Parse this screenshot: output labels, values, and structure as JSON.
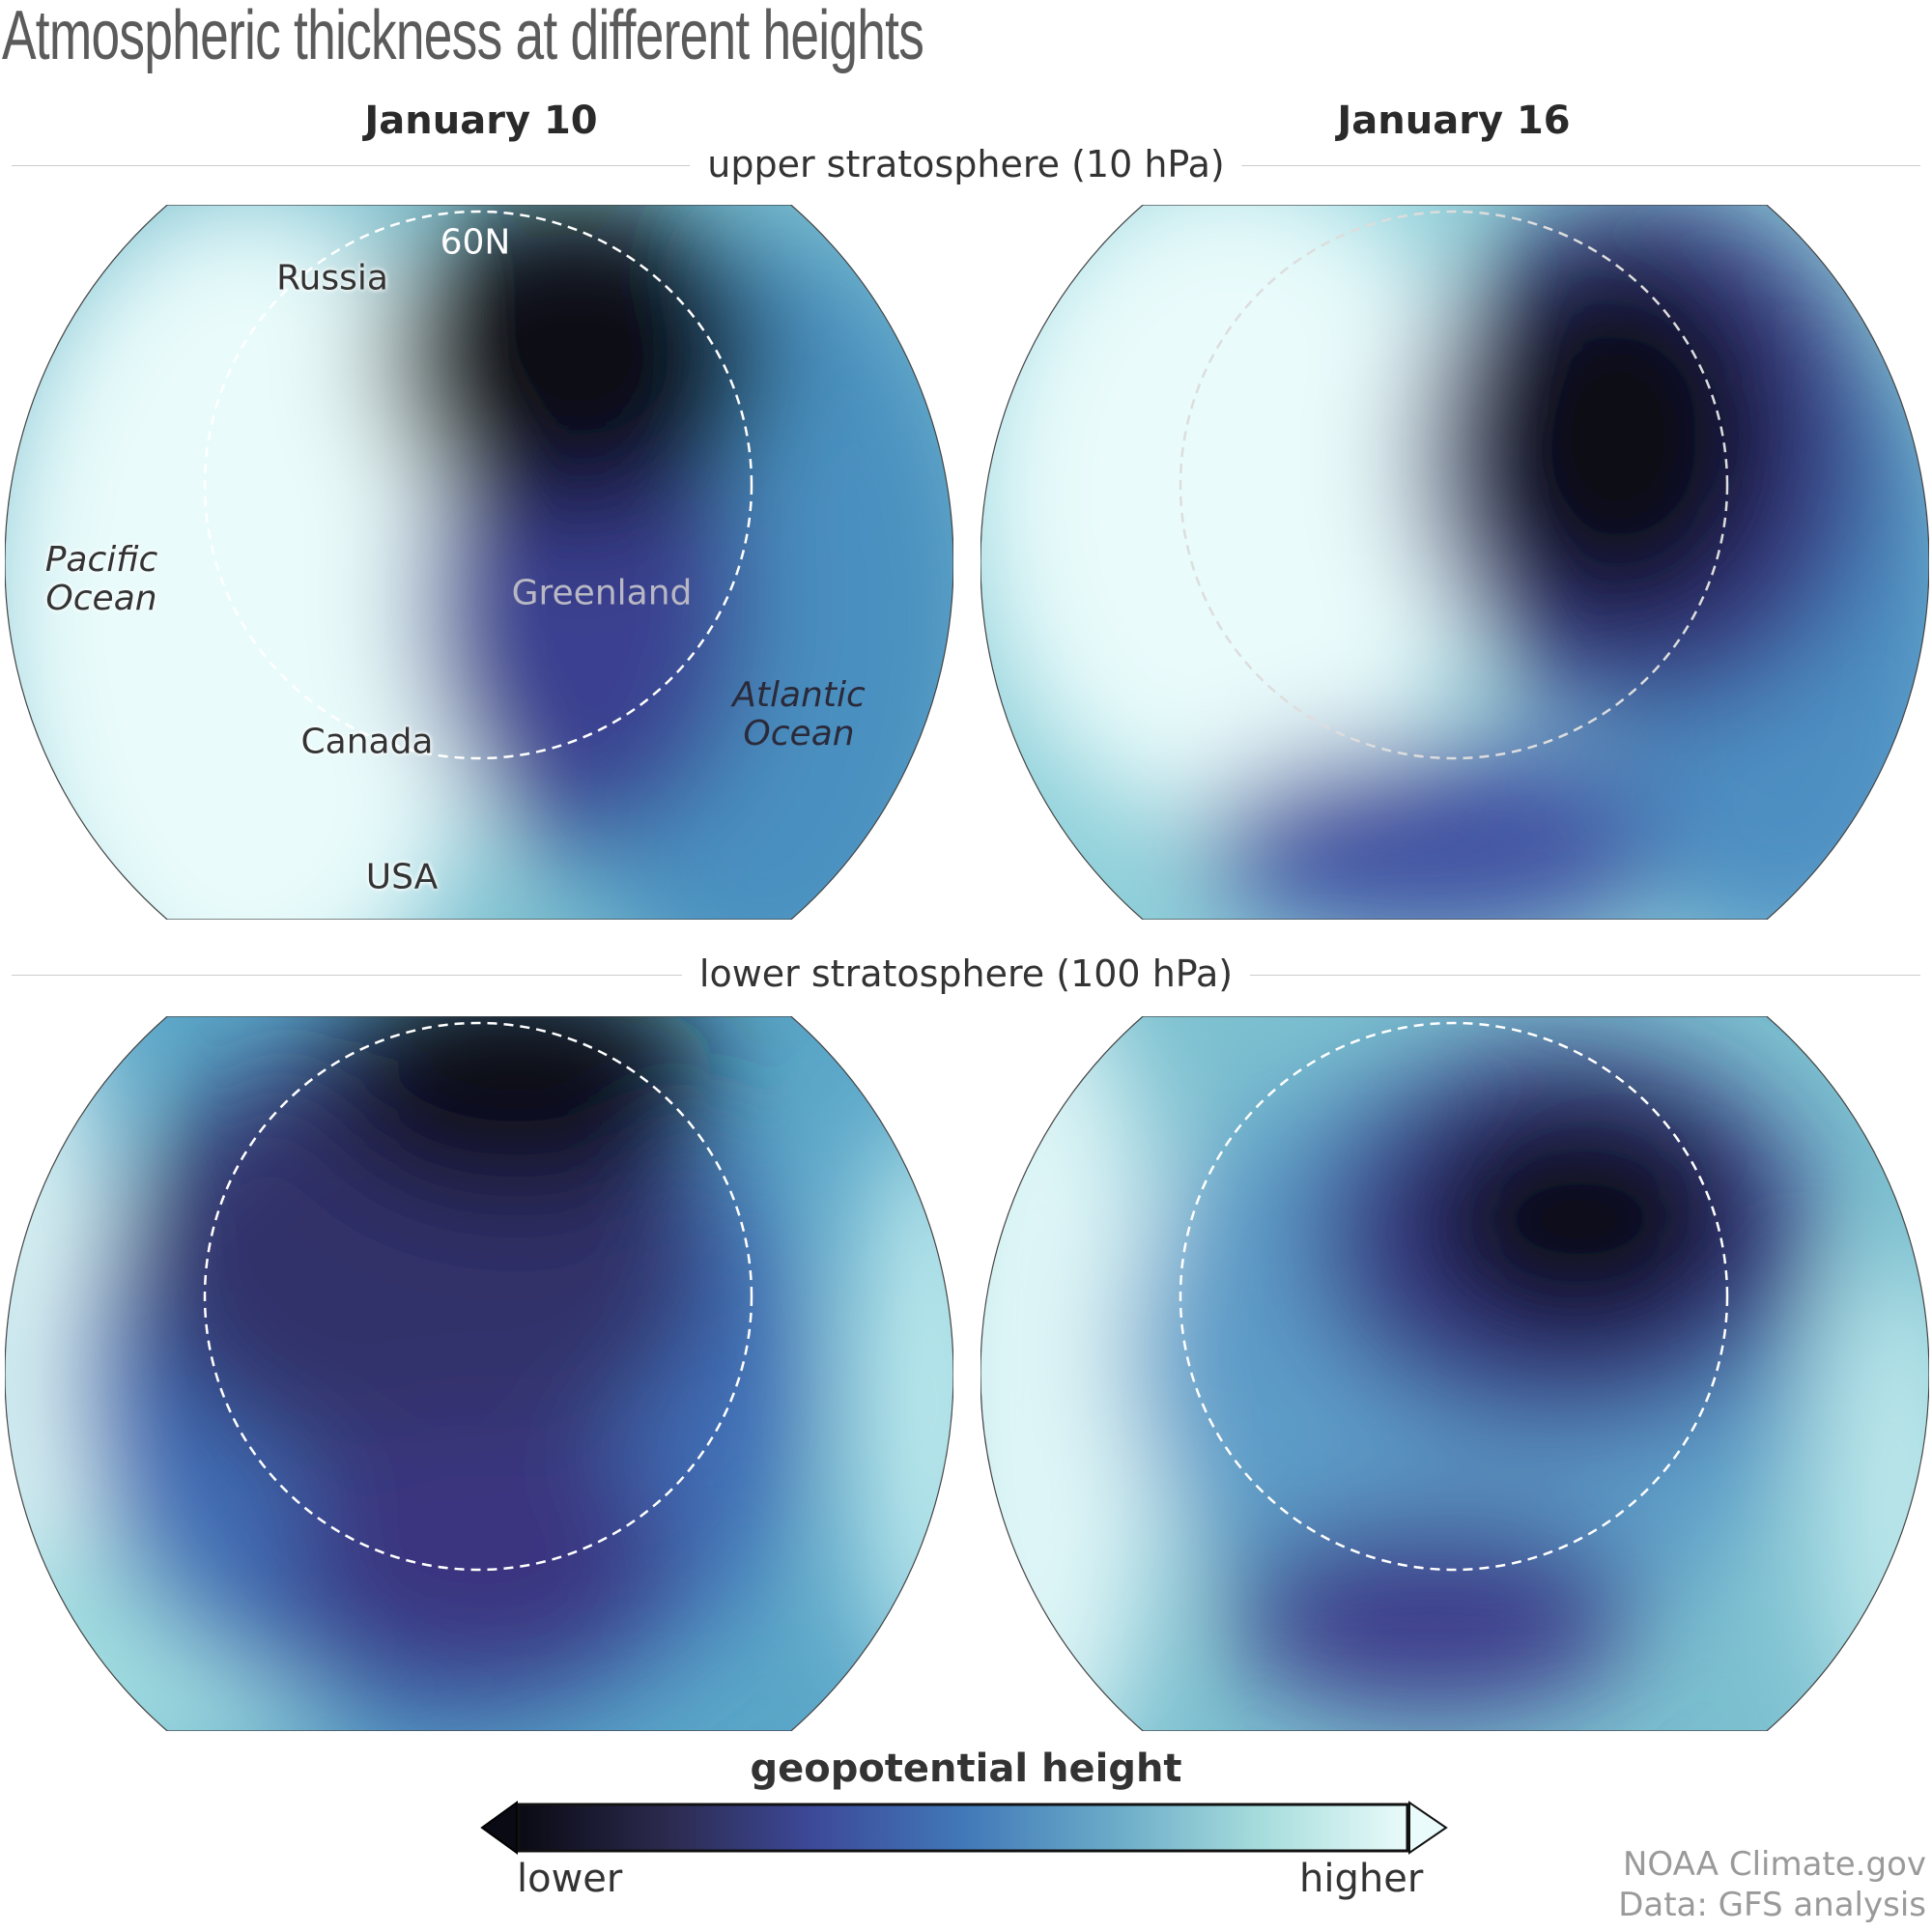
{
  "title": "Atmospheric thickness at different heights",
  "columns": [
    "January 10",
    "January 16"
  ],
  "sections": {
    "upper": "upper stratosphere (10 hPa)",
    "lower": "lower stratosphere (100 hPa)"
  },
  "map_labels": {
    "lat_circle": "60N",
    "russia": "Russia",
    "pacific_line1": "Pacific",
    "pacific_line2": "Ocean",
    "greenland": "Greenland",
    "canada": "Canada",
    "atlantic_line1": "Atlantic",
    "atlantic_line2": "Ocean",
    "usa": "USA"
  },
  "colorbar": {
    "title": "geopotential height",
    "low_label": "lower",
    "high_label": "higher",
    "colors": [
      "#0a0a14",
      "#2b2a4e",
      "#3d4a9a",
      "#4178b8",
      "#6aaac8",
      "#a6dcdc",
      "#eafbfb"
    ]
  },
  "credit": {
    "line1": "NOAA Climate.gov",
    "line2": "Data: GFS analysis"
  },
  "chart_data": {
    "type": "heatmap",
    "title": "Atmospheric thickness at different heights",
    "panels": [
      {
        "date": "January 10",
        "level": "upper stratosphere (10 hPa)",
        "low_center": "over northern Russia/Siberia, extending toward Greenland"
      },
      {
        "date": "January 16",
        "level": "upper stratosphere (10 hPa)",
        "low_center": "shifted over Europe/Scandinavia, secondary low over eastern Canada"
      },
      {
        "date": "January 10",
        "level": "lower stratosphere (100 hPa)",
        "low_center": "over northern Russia with lobe over Canada"
      },
      {
        "date": "January 16",
        "level": "lower stratosphere (100 hPa)",
        "low_center": "over Scandinavia with lobe over eastern Canada/Great Lakes"
      }
    ],
    "colorbar_label": "geopotential height",
    "colorbar_range": [
      "lower",
      "higher"
    ],
    "reference_circle": "60N"
  }
}
